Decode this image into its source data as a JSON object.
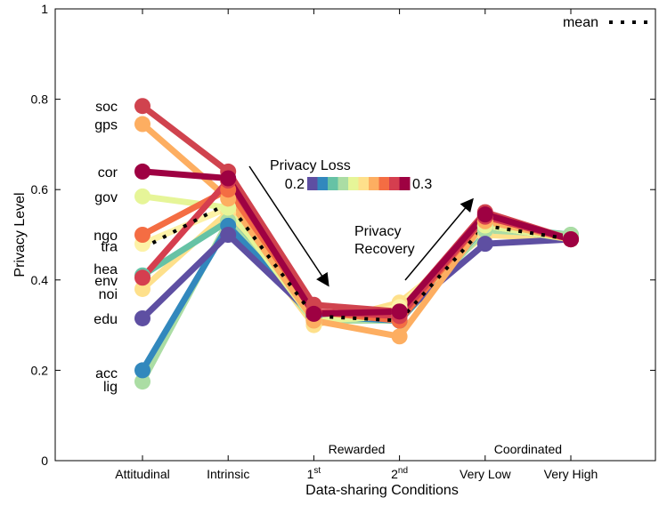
{
  "chart_data": {
    "type": "line",
    "xlabel": "Data-sharing Conditions",
    "ylabel": "Privacy Level",
    "ylim": [
      0,
      1
    ],
    "yticks": [
      "0",
      "0.2",
      "0.4",
      "0.6",
      "0.8",
      "1"
    ],
    "categories": [
      "Attitudinal",
      "Intrinsic",
      "1st",
      "2nd",
      "Very Low",
      "Very High"
    ],
    "category_labels": [
      {
        "main": "Attitudinal",
        "sup": ""
      },
      {
        "main": "Intrinsic",
        "sup": ""
      },
      {
        "main": "1",
        "sup": "st"
      },
      {
        "main": "2",
        "sup": "nd"
      },
      {
        "main": "Very Low",
        "sup": ""
      },
      {
        "main": "Very High",
        "sup": ""
      }
    ],
    "groups": [
      {
        "label": "Rewarded",
        "span": [
          2,
          3
        ]
      },
      {
        "label": "Coordinated",
        "span": [
          4,
          5
        ]
      }
    ],
    "legend": {
      "entry": "mean",
      "position": "top-right"
    },
    "colorbar": {
      "title": "Privacy Loss",
      "min_label": "0.2",
      "max_label": "0.3",
      "colors": [
        "#5e4fa2",
        "#3288bd",
        "#66c2a5",
        "#abdda4",
        "#e6f598",
        "#fee08b",
        "#fdae61",
        "#f46d43",
        "#d53e4f",
        "#9e0142"
      ]
    },
    "annotations": [
      {
        "text": "Privacy Loss"
      },
      {
        "text": "Privacy"
      },
      {
        "text": "Recovery"
      }
    ],
    "series": [
      {
        "name": "noi",
        "color": "#fee08b",
        "values": [
          0.38,
          0.55,
          0.3,
          0.35,
          0.5,
          0.49
        ]
      },
      {
        "name": "tra",
        "color": "#fdf2a7",
        "values": [
          0.48,
          0.56,
          0.31,
          0.34,
          0.53,
          0.49
        ]
      },
      {
        "name": "hea",
        "color": "#66c2a5",
        "values": [
          0.41,
          0.53,
          0.32,
          0.31,
          0.52,
          0.5
        ]
      },
      {
        "name": "lig",
        "color": "#abdda4",
        "values": [
          0.175,
          0.53,
          0.31,
          0.31,
          0.51,
          0.5
        ]
      },
      {
        "name": "acc",
        "color": "#3288bd",
        "values": [
          0.2,
          0.52,
          0.32,
          0.31,
          0.52,
          0.49
        ]
      },
      {
        "name": "edu",
        "color": "#5e4fa2",
        "values": [
          0.315,
          0.5,
          0.32,
          0.32,
          0.48,
          0.49
        ]
      },
      {
        "name": "gov",
        "color": "#e6f598",
        "values": [
          0.585,
          0.56,
          0.31,
          0.32,
          0.52,
          0.49
        ]
      },
      {
        "name": "gps",
        "color": "#fdae61",
        "values": [
          0.745,
          0.58,
          0.31,
          0.275,
          0.53,
          0.49
        ]
      },
      {
        "name": "ngo",
        "color": "#f46d43",
        "values": [
          0.5,
          0.6,
          0.33,
          0.31,
          0.54,
          0.49
        ]
      },
      {
        "name": "env",
        "color": "#d53e4f",
        "values": [
          0.405,
          0.62,
          0.33,
          0.32,
          0.54,
          0.49
        ]
      },
      {
        "name": "soc",
        "color": "#d0434e",
        "values": [
          0.785,
          0.64,
          0.345,
          0.33,
          0.55,
          0.49
        ]
      },
      {
        "name": "cor",
        "color": "#9e0142",
        "values": [
          0.64,
          0.625,
          0.325,
          0.33,
          0.545,
          0.49
        ]
      },
      {
        "name": "mean",
        "color": "#000000",
        "dashed": true,
        "values": [
          0.47,
          0.57,
          0.32,
          0.31,
          0.52,
          0.49
        ]
      }
    ]
  }
}
